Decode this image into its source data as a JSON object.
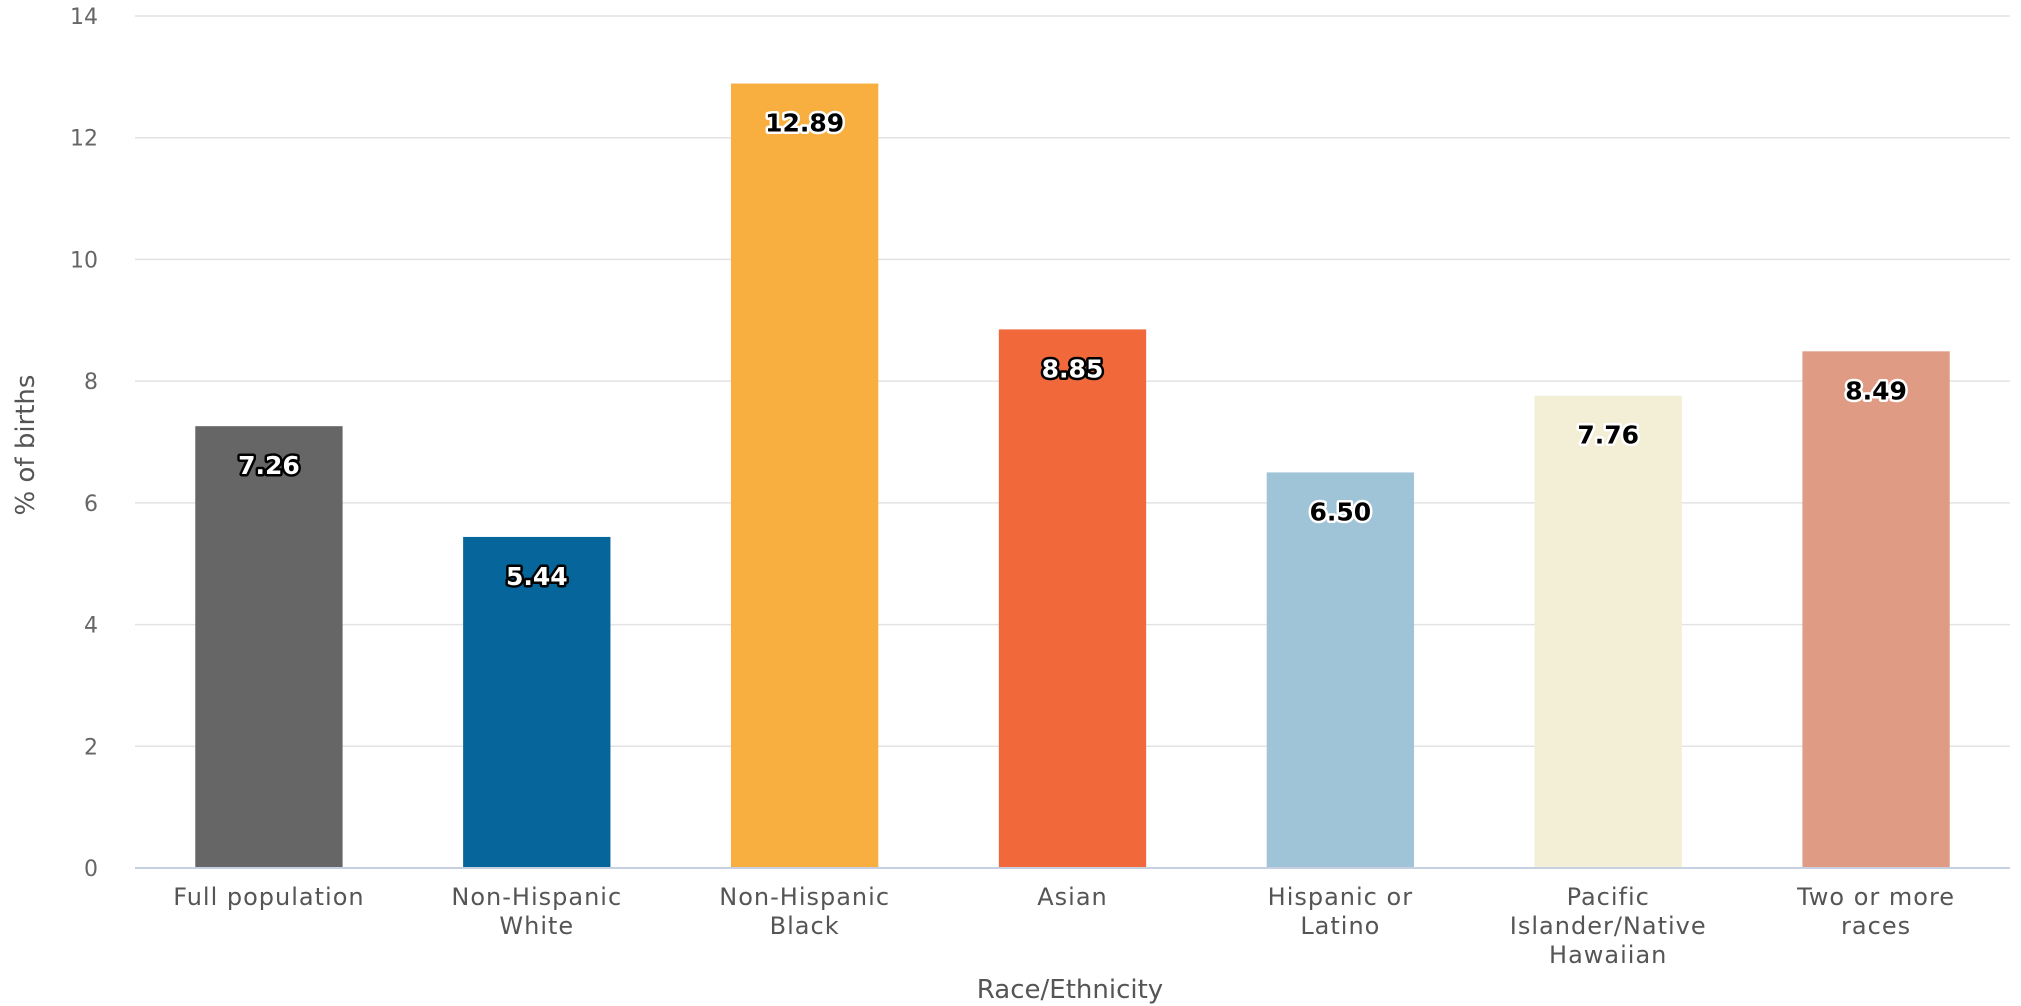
{
  "chart_data": {
    "type": "bar",
    "xlabel": "Race/Ethnicity",
    "ylabel": "% of births",
    "ylim": [
      0,
      14
    ],
    "yticks": [
      0,
      2,
      4,
      6,
      8,
      10,
      12,
      14
    ],
    "grid": true,
    "categories": [
      [
        "Full population"
      ],
      [
        "Non-Hispanic",
        "White"
      ],
      [
        "Non-Hispanic",
        "Black"
      ],
      [
        "Asian"
      ],
      [
        "Hispanic or",
        "Latino"
      ],
      [
        "Pacific",
        "Islander/Native",
        "Hawaiian"
      ],
      [
        "Two or more",
        "races"
      ]
    ],
    "values": [
      7.26,
      5.44,
      12.89,
      8.85,
      6.5,
      7.76,
      8.49
    ],
    "value_labels": [
      "7.26",
      "5.44",
      "12.89",
      "8.85",
      "6.50",
      "7.76",
      "8.49"
    ],
    "colors": [
      "#666666",
      "#06659b",
      "#f9ae40",
      "#f1683a",
      "#9fc3d7",
      "#f3eed6",
      "#e09b85"
    ],
    "label_colors": [
      "#ffffff",
      "#ffffff",
      "#000000",
      "#ffffff",
      "#000000",
      "#000000",
      "#000000"
    ],
    "label_halo_colors": [
      "#000000",
      "#000000",
      "#ffffff",
      "#000000",
      "#ffffff",
      "#ffffff",
      "#ffffff"
    ]
  }
}
